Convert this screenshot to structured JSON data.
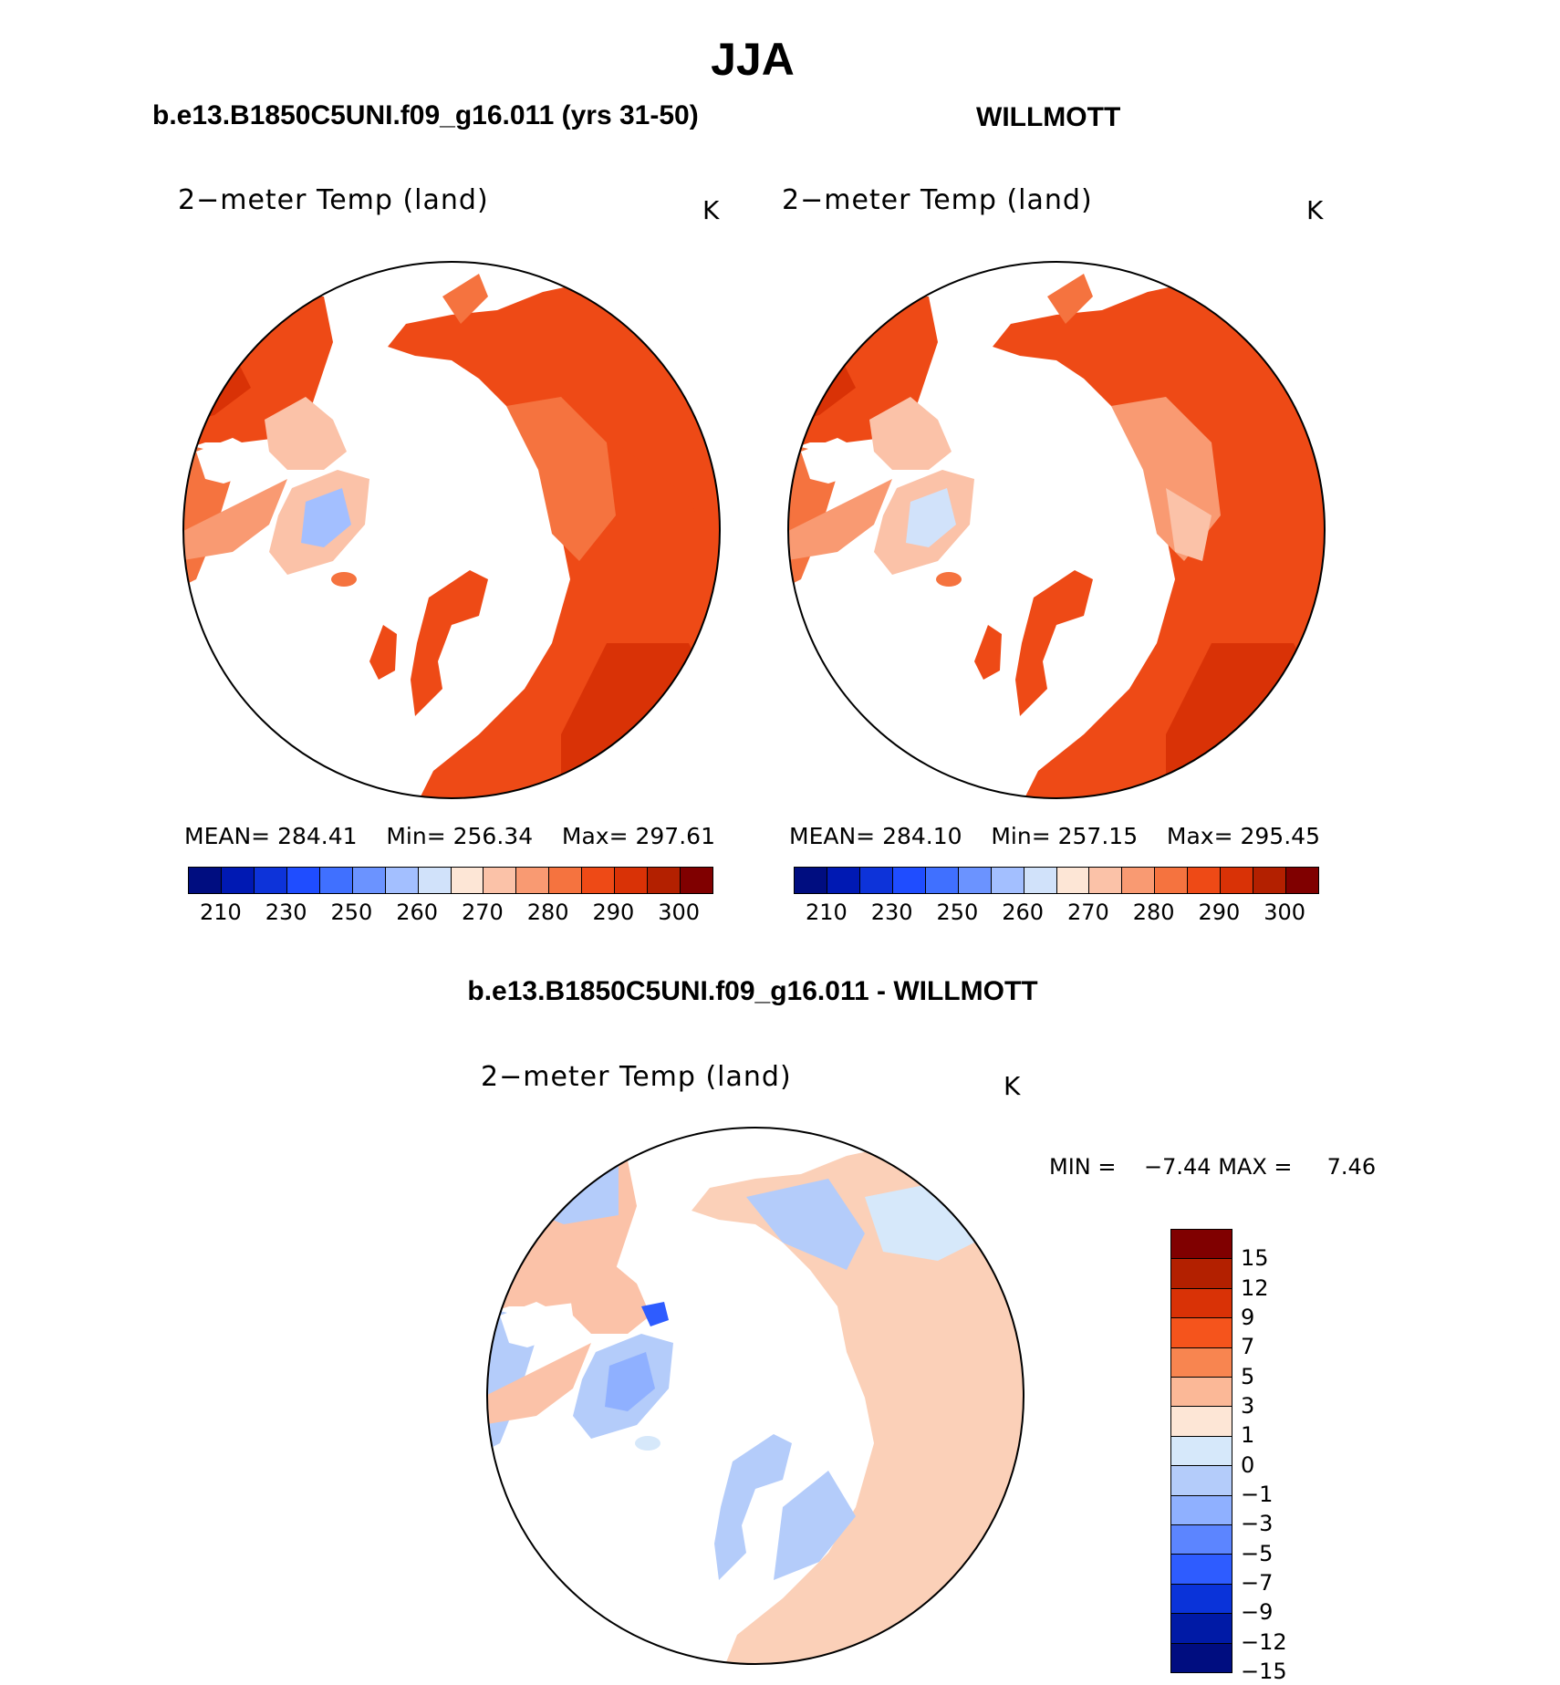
{
  "title": "JJA",
  "panels": [
    {
      "case_title": "b.e13.B1850C5UNI.f09_g16.011 (yrs 31-50)",
      "variable": "2−meter Temp (land)",
      "units": "K",
      "stats": {
        "mean_label": "MEAN=",
        "mean": "284.41",
        "min_label": "Min=",
        "min": "256.34",
        "max_label": "Max=",
        "max": "297.61"
      }
    },
    {
      "case_title": "WILLMOTT",
      "variable": "2−meter Temp (land)",
      "units": "K",
      "stats": {
        "mean_label": "MEAN=",
        "mean": "284.10",
        "min_label": "Min=",
        "min": "257.15",
        "max_label": "Max=",
        "max": "295.45"
      }
    }
  ],
  "abs_colorbar": {
    "colors": [
      "#000d80",
      "#0019b3",
      "#0d33d9",
      "#1f4dff",
      "#4070ff",
      "#6b93ff",
      "#a3bfff",
      "#d1e2fa",
      "#fde6d6",
      "#fbc2a8",
      "#f99a72",
      "#f5733f",
      "#ee4a16",
      "#d93206",
      "#b32000",
      "#800000"
    ],
    "tick_labels": [
      "210",
      "230",
      "250",
      "260",
      "270",
      "280",
      "290",
      "300"
    ]
  },
  "diff_panel": {
    "case_title": "b.e13.B1850C5UNI.f09_g16.011 - WILLMOTT",
    "variable": "2−meter Temp (land)",
    "units": "K",
    "min_label": "MIN =",
    "min": "−7.44",
    "max_label": "MAX =",
    "max": "7.46"
  },
  "diff_colorbar": {
    "colors": [
      "#800000",
      "#b32000",
      "#d93206",
      "#f5541c",
      "#f88550",
      "#fbb897",
      "#fde6d6",
      "#d6e8fa",
      "#b4ccfa",
      "#8fb0ff",
      "#5c85ff",
      "#2e5cff",
      "#0a33d9",
      "#001aa6",
      "#000d80"
    ],
    "tick_labels": [
      "15",
      "12",
      "9",
      "7",
      "5",
      "3",
      "1",
      "0",
      "−1",
      "−3",
      "−5",
      "−7",
      "−9",
      "−12",
      "−15"
    ]
  }
}
